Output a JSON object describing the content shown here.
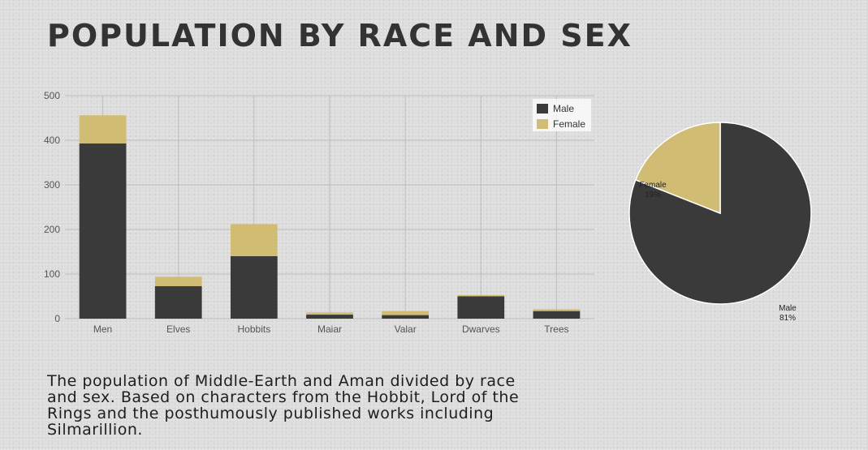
{
  "page": {
    "title": "POPULATION BY RACE AND SEX",
    "description": "The population of Middle-Earth and Aman divided by race and sex. Based on characters from the Hobbit, Lord of the Rings and the posthumously published works including Silmarillion."
  },
  "colors": {
    "male": "#3a3a3a",
    "female": "#d1bc73",
    "grid": "#bdbdbd",
    "text": "#555555"
  },
  "chart_data": [
    {
      "type": "bar",
      "stacked": true,
      "categories": [
        "Men",
        "Elves",
        "Hobbits",
        "Maiar",
        "Valar",
        "Dwarves",
        "Trees"
      ],
      "series": [
        {
          "name": "Male",
          "values": [
            393,
            73,
            140,
            9,
            8,
            50,
            17
          ]
        },
        {
          "name": "Female",
          "values": [
            63,
            21,
            72,
            5,
            9,
            3,
            4
          ]
        }
      ],
      "ylim": [
        0,
        500
      ],
      "yticks": [
        0,
        100,
        200,
        300,
        400,
        500
      ],
      "grid": true,
      "legend": "top-right"
    },
    {
      "type": "pie",
      "labels": [
        "Male",
        "Female"
      ],
      "values": [
        81,
        19
      ],
      "value_labels": [
        "81%",
        "19%"
      ]
    }
  ]
}
